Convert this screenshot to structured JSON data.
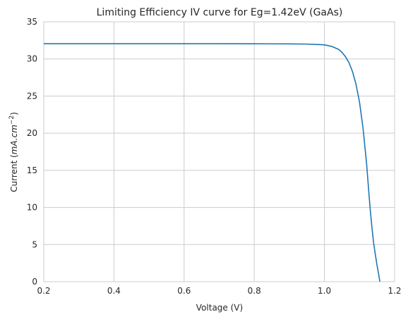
{
  "chart_data": {
    "type": "line",
    "title": "Limiting Efficiency IV curve for Eg=1.42eV (GaAs)",
    "xlabel": "Voltage (V)",
    "ylabel_prefix": "Current (",
    "ylabel_math": "mA.cm",
    "ylabel_exp": "−2",
    "ylabel_suffix": ")",
    "xlim": [
      0.2,
      1.2
    ],
    "ylim": [
      0,
      35
    ],
    "xticks": [
      "0.2",
      "0.4",
      "0.6",
      "0.8",
      "1.0",
      "1.2"
    ],
    "yticks": [
      "0",
      "5",
      "10",
      "15",
      "20",
      "25",
      "30",
      "35"
    ],
    "grid": true,
    "line_color": "#1f77b4",
    "series": [
      {
        "x": [
          0.2,
          0.3,
          0.4,
          0.5,
          0.6,
          0.7,
          0.8,
          0.9,
          0.95,
          0.98,
          1.0,
          1.02,
          1.04,
          1.05,
          1.06,
          1.07,
          1.08,
          1.09,
          1.1,
          1.11,
          1.12,
          1.13,
          1.135,
          1.14,
          1.145,
          1.15,
          1.155,
          1.158
        ],
        "y": [
          32.05,
          32.05,
          32.05,
          32.05,
          32.05,
          32.05,
          32.04,
          32.03,
          32.0,
          31.95,
          31.9,
          31.7,
          31.3,
          30.9,
          30.3,
          29.5,
          28.3,
          26.6,
          24.2,
          20.7,
          16.0,
          10.0,
          7.5,
          5.3,
          3.7,
          2.2,
          0.9,
          0.0
        ]
      }
    ]
  }
}
